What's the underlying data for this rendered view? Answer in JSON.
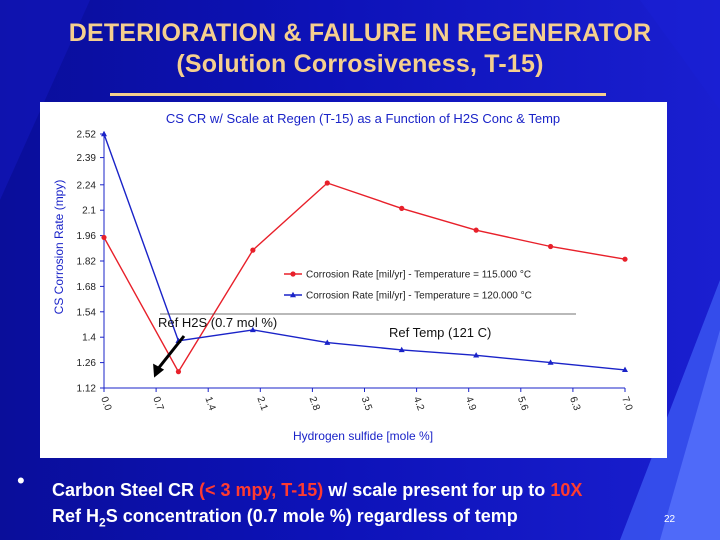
{
  "slide": {
    "title_line1": "DETERIORATION & FAILURE IN REGENERATOR",
    "title_line2": "(Solution Corrosiveness, T-15)",
    "bullet": {
      "text_before": "Carbon Steel CR ",
      "highlight1": "(< 3 mpy, T-15)",
      "text_mid": " w/ scale present for up to ",
      "highlight2": "10X",
      "line2_pre": "Ref H",
      "line2_sub": "2",
      "line2_post": "S concentration (0.7 mole %) regardless of temp"
    },
    "slide_number": "22",
    "colors": {
      "title": "#f5cf8e",
      "accent": "#ff3b30",
      "background": "#0d12b8"
    }
  },
  "chart_data": {
    "type": "line",
    "title": "CS CR w/ Scale at Regen (T-15) as a Function of H2S Conc & Temp",
    "xlabel": "Hydrogen sulfide [mole %]",
    "ylabel": "CS Corrosion Rate (mpy)",
    "xlim": [
      0.0,
      7.0
    ],
    "ylim": [
      1.12,
      2.52
    ],
    "x_ticks": [
      "0.0",
      "0.7",
      "1.4",
      "2.1",
      "2.8",
      "3.5",
      "4.2",
      "4.9",
      "5.6",
      "6.3",
      "7.0"
    ],
    "y_ticks": [
      "2.52",
      "2.39",
      "2.24",
      "2.1",
      "1.96",
      "1.82",
      "1.68",
      "1.54",
      "1.4",
      "1.26",
      "1.12"
    ],
    "series": [
      {
        "name": "Corrosion Rate [mil/yr] - Temperature = 115.000 °C",
        "color": "#e8202a",
        "marker": "circle",
        "points": [
          [
            0.0,
            1.95
          ],
          [
            1.0,
            1.21
          ],
          [
            2.0,
            1.88
          ],
          [
            3.0,
            2.25
          ],
          [
            4.0,
            2.11
          ],
          [
            5.0,
            1.99
          ],
          [
            6.0,
            1.9
          ],
          [
            7.0,
            1.83
          ]
        ]
      },
      {
        "name": "Corrosion Rate [mil/yr] - Temperature = 120.000 °C",
        "color": "#1a23c8",
        "marker": "triangle",
        "points": [
          [
            0.0,
            2.52
          ],
          [
            1.0,
            1.38
          ],
          [
            2.0,
            1.44
          ],
          [
            3.0,
            1.37
          ],
          [
            4.0,
            1.33
          ],
          [
            5.0,
            1.3
          ],
          [
            6.0,
            1.26
          ],
          [
            7.0,
            1.22
          ]
        ]
      }
    ],
    "legend_position": "center-right",
    "annotations": [
      {
        "text": "Ref H2S (0.7 mol %)",
        "arrow_to": [
          0.7,
          1.21
        ]
      },
      {
        "text": "Ref Temp (121 C)"
      }
    ],
    "grid": false
  }
}
